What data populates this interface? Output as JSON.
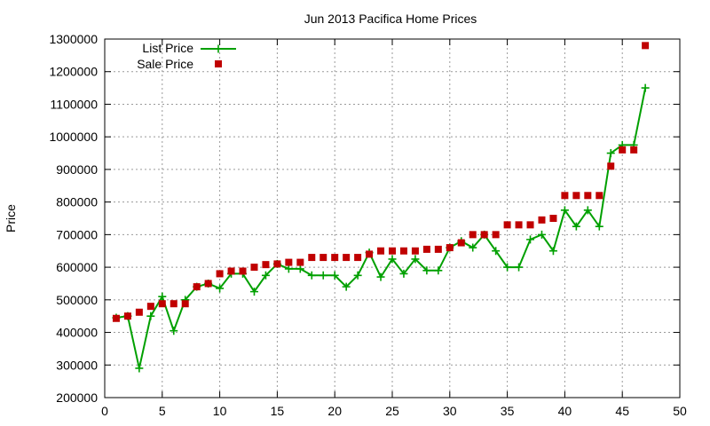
{
  "chart_data": {
    "type": "line",
    "title": "Jun 2013 Pacifica Home Prices",
    "xlabel": "",
    "ylabel": "Price",
    "xlim": [
      0,
      50
    ],
    "ylim": [
      200000,
      1300000
    ],
    "xticks": [
      0,
      5,
      10,
      15,
      20,
      25,
      30,
      35,
      40,
      45,
      50
    ],
    "yticks": [
      200000,
      300000,
      400000,
      500000,
      600000,
      700000,
      800000,
      900000,
      1000000,
      1100000,
      1200000,
      1300000
    ],
    "grid": true,
    "legend_position": "top-left",
    "series": [
      {
        "name": "List Price",
        "style": "line-plus",
        "color": "#00a000",
        "x": [
          1,
          2,
          3,
          4,
          5,
          6,
          7,
          8,
          9,
          10,
          11,
          12,
          13,
          14,
          15,
          16,
          17,
          18,
          19,
          20,
          21,
          22,
          23,
          24,
          25,
          26,
          27,
          28,
          29,
          30,
          31,
          32,
          33,
          34,
          35,
          36,
          37,
          38,
          39,
          40,
          41,
          42,
          43,
          44,
          45,
          46,
          47
        ],
        "y": [
          445000,
          450000,
          290000,
          450000,
          510000,
          405000,
          500000,
          540000,
          550000,
          535000,
          580000,
          580000,
          525000,
          575000,
          610000,
          595000,
          595000,
          575000,
          575000,
          575000,
          540000,
          575000,
          645000,
          570000,
          625000,
          580000,
          625000,
          590000,
          590000,
          660000,
          680000,
          660000,
          700000,
          650000,
          600000,
          600000,
          685000,
          700000,
          650000,
          775000,
          725000,
          775000,
          725000,
          950000,
          975000,
          975000,
          1150000
        ]
      },
      {
        "name": "Sale Price",
        "style": "square-markers",
        "color": "#c00000",
        "x": [
          1,
          2,
          3,
          4,
          5,
          6,
          7,
          8,
          9,
          10,
          11,
          12,
          13,
          14,
          15,
          16,
          17,
          18,
          19,
          20,
          21,
          22,
          23,
          24,
          25,
          26,
          27,
          28,
          29,
          30,
          31,
          32,
          33,
          34,
          35,
          36,
          37,
          38,
          39,
          40,
          41,
          42,
          43,
          44,
          45,
          46,
          47
        ],
        "y": [
          443000,
          450000,
          462000,
          480000,
          488000,
          488000,
          488000,
          540000,
          550000,
          580000,
          588000,
          588000,
          600000,
          608000,
          610000,
          615000,
          615000,
          630000,
          630000,
          630000,
          630000,
          630000,
          640000,
          650000,
          650000,
          650000,
          650000,
          655000,
          655000,
          660000,
          675000,
          700000,
          700000,
          700000,
          730000,
          730000,
          730000,
          745000,
          750000,
          820000,
          820000,
          820000,
          820000,
          910000,
          960000,
          960000,
          1280000
        ]
      }
    ]
  }
}
